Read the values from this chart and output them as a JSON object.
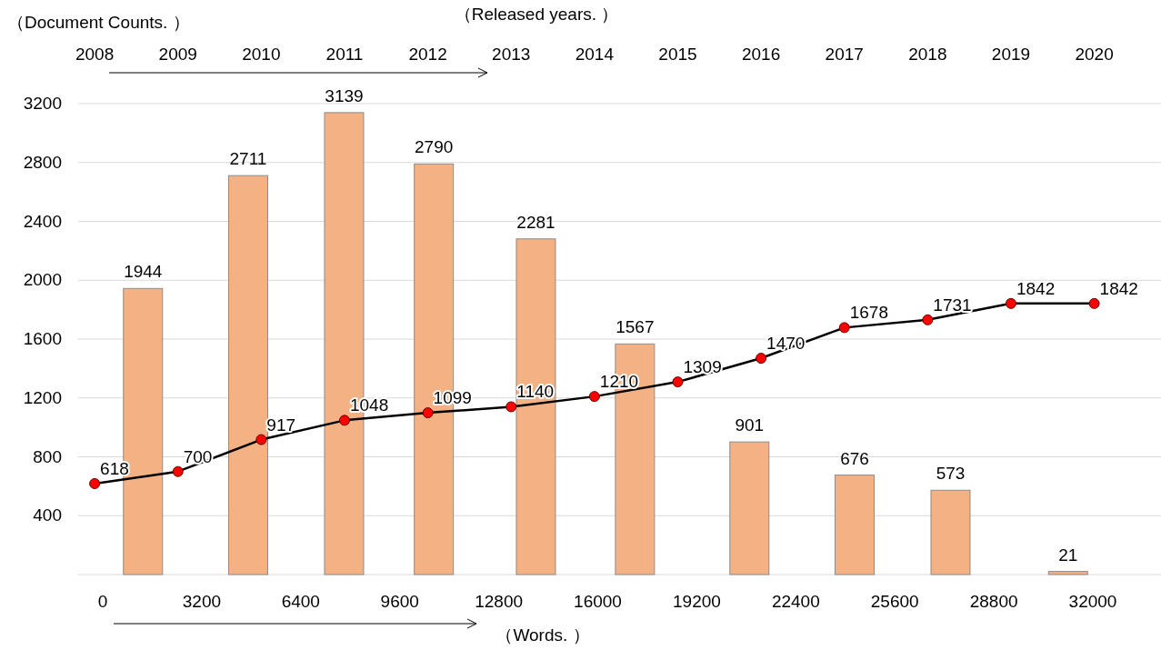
{
  "chart_data": {
    "type": "bar",
    "xlabel": "（Words. ）",
    "ylabel": "（Document Counts. ）",
    "x2label": "（Released years. ）",
    "xlim": [
      -800,
      34200
    ],
    "xticks": [
      0,
      3200,
      6400,
      9600,
      12800,
      16000,
      19200,
      22400,
      25600,
      28800,
      32000
    ],
    "x2lim": [
      2007.8,
      2020.8
    ],
    "x2ticks": [
      2008,
      2009,
      2010,
      2011,
      2012,
      2013,
      2014,
      2015,
      2016,
      2017,
      2018,
      2019,
      2020
    ],
    "ylim": [
      0,
      3200
    ],
    "yticks": [
      400,
      800,
      1200,
      1600,
      2000,
      2400,
      2800,
      3200
    ],
    "grid": "y",
    "data_labels": true,
    "series": [
      {
        "color": "#f4b183",
        "x": [
          1300,
          4700,
          7800,
          10700,
          14000,
          17200,
          20900,
          24300,
          27400,
          31200
        ],
        "values": [
          1944,
          2711,
          3139,
          2790,
          2281,
          1567,
          901,
          676,
          573,
          21
        ]
      },
      {
        "type": "line",
        "axis": "x2",
        "color": "#000000",
        "marker": "circle",
        "x": [
          2008,
          2009,
          2010,
          2011,
          2012,
          2013,
          2014,
          2015,
          2016,
          2017,
          2018,
          2019,
          2020
        ],
        "values": [
          618,
          700,
          917,
          1048,
          1099,
          1140,
          1210,
          1309,
          1470,
          1678,
          1731,
          1842,
          1842
        ]
      }
    ]
  }
}
